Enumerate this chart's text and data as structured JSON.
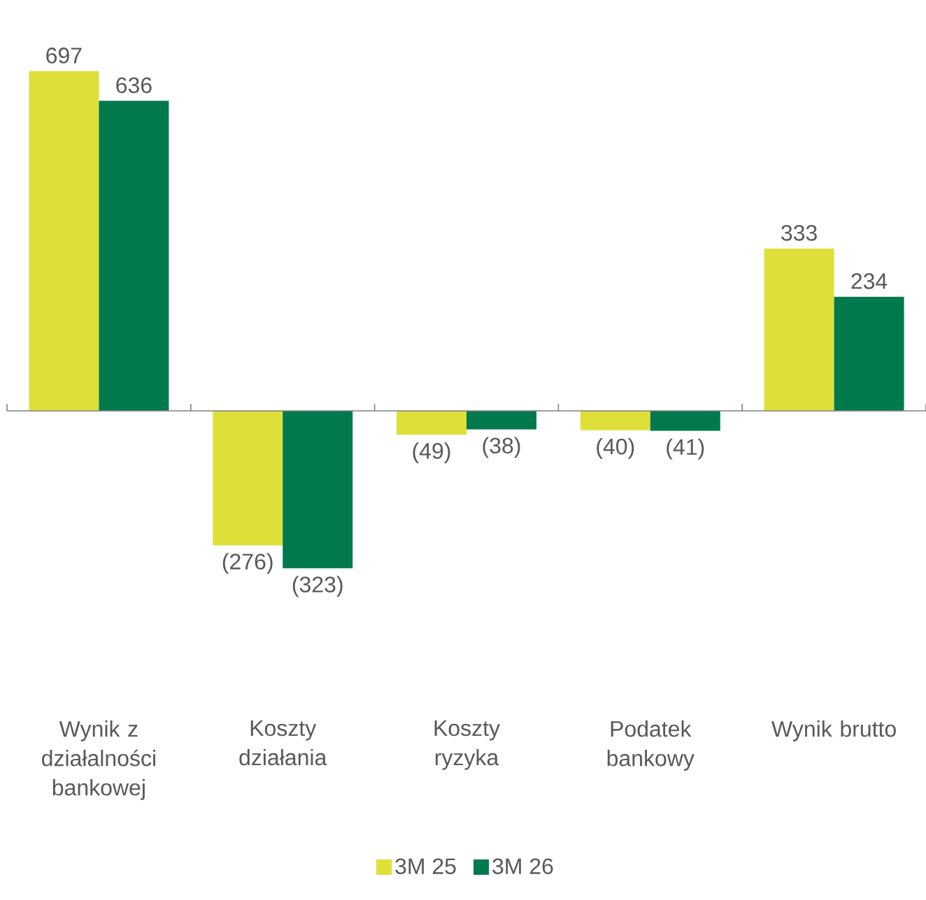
{
  "chart_data": {
    "type": "bar",
    "categories": [
      "Wynik z działalności bankowej",
      "Koszty działania",
      "Koszty ryzyka",
      "Podatek bankowy",
      "Wynik brutto"
    ],
    "series": [
      {
        "name": "3M 25",
        "color": "#dfdf3a",
        "values": [
          697,
          -276,
          -49,
          -40,
          333
        ],
        "value_labels": [
          "697",
          "(276)",
          "(49)",
          "(40)",
          "333"
        ]
      },
      {
        "name": "3M 26",
        "color": "#007a4d",
        "values": [
          636,
          -323,
          -38,
          -41,
          234
        ],
        "value_labels": [
          "636",
          "(323)",
          "(38)",
          "(41)",
          "234"
        ]
      }
    ],
    "legend": "bottom"
  }
}
